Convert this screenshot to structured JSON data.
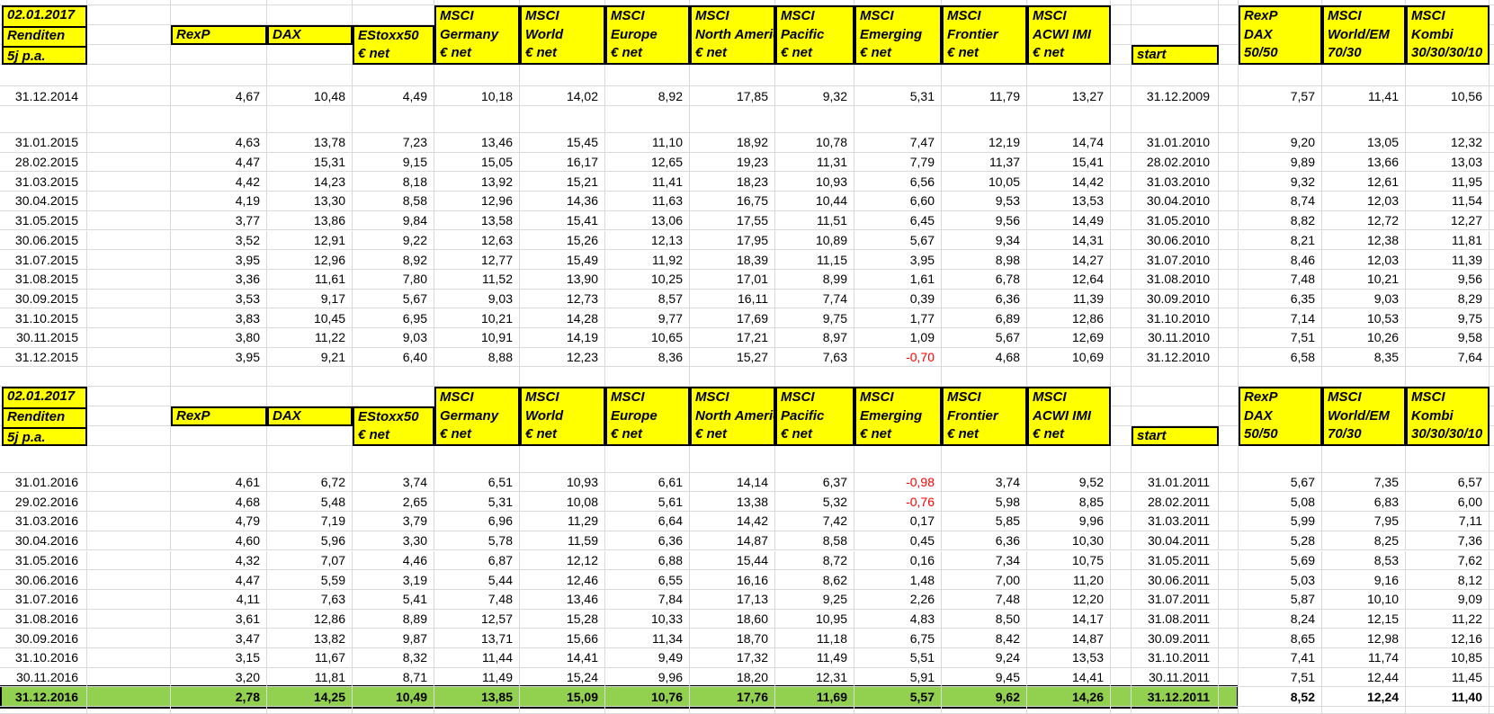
{
  "sheet": {
    "title_lines": [
      "02.01.2017",
      "Renditen",
      "5j p.a."
    ],
    "start_header": "start",
    "index_headers": [
      {
        "id": "rexp",
        "lines": [
          "RexP"
        ]
      },
      {
        "id": "dax",
        "lines": [
          "DAX"
        ]
      },
      {
        "id": "estoxx50",
        "lines": [
          "EStoxx50",
          "€ net"
        ]
      },
      {
        "id": "msci-germany",
        "lines": [
          "MSCI",
          "Germany",
          "€ net"
        ]
      },
      {
        "id": "msci-world",
        "lines": [
          "MSCI",
          "World",
          "€ net"
        ]
      },
      {
        "id": "msci-europe",
        "lines": [
          "MSCI",
          "Europe",
          "€ net"
        ]
      },
      {
        "id": "msci-north-america",
        "lines": [
          "MSCI",
          "North Americ",
          "€ net"
        ]
      },
      {
        "id": "msci-pacific",
        "lines": [
          "MSCI",
          "Pacific",
          "€ net"
        ]
      },
      {
        "id": "msci-emerging",
        "lines": [
          "MSCI",
          "Emerging",
          "€ net"
        ]
      },
      {
        "id": "msci-frontier",
        "lines": [
          "MSCI",
          "Frontier",
          "€ net"
        ]
      },
      {
        "id": "msci-acwi-imi",
        "lines": [
          "MSCI",
          "ACWI IMI",
          "€ net"
        ]
      }
    ],
    "combo_headers": [
      {
        "id": "rexp-dax-50-50",
        "lines": [
          "RexP",
          "DAX",
          "50/50"
        ]
      },
      {
        "id": "msci-world-em-70-30",
        "lines": [
          "MSCI",
          "World/EM",
          "70/30"
        ]
      },
      {
        "id": "msci-kombi-30-30-30-10",
        "lines": [
          "MSCI",
          "Kombi",
          "30/30/30/10"
        ]
      }
    ],
    "colors": {
      "header_bg": "#ffff00",
      "highlight_bg": "#92d050",
      "negative_text": "#ff0000",
      "gridline": "#d9d9d9",
      "border": "#000000"
    },
    "blocks": [
      {
        "rows": [
          {
            "date": "31.12.2014",
            "values": [
              "4,67",
              "10,48",
              "4,49",
              "10,18",
              "14,02",
              "8,92",
              "17,85",
              "9,32",
              "5,31",
              "11,79",
              "13,27"
            ],
            "start": "31.12.2009",
            "combos": [
              "7,57",
              "11,41",
              "10,56"
            ]
          },
          {
            "date": "31.01.2015",
            "values": [
              "4,63",
              "13,78",
              "7,23",
              "13,46",
              "15,45",
              "11,10",
              "18,92",
              "10,78",
              "7,47",
              "12,19",
              "14,74"
            ],
            "start": "31.01.2010",
            "combos": [
              "9,20",
              "13,05",
              "12,32"
            ]
          },
          {
            "date": "28.02.2015",
            "values": [
              "4,47",
              "15,31",
              "9,15",
              "15,05",
              "16,17",
              "12,65",
              "19,23",
              "11,31",
              "7,79",
              "11,37",
              "15,41"
            ],
            "start": "28.02.2010",
            "combos": [
              "9,89",
              "13,66",
              "13,03"
            ]
          },
          {
            "date": "31.03.2015",
            "values": [
              "4,42",
              "14,23",
              "8,18",
              "13,92",
              "15,21",
              "11,41",
              "18,23",
              "10,93",
              "6,56",
              "10,05",
              "14,42"
            ],
            "start": "31.03.2010",
            "combos": [
              "9,32",
              "12,61",
              "11,95"
            ]
          },
          {
            "date": "30.04.2015",
            "values": [
              "4,19",
              "13,30",
              "8,58",
              "12,96",
              "14,36",
              "11,63",
              "16,75",
              "10,44",
              "6,60",
              "9,53",
              "13,53"
            ],
            "start": "30.04.2010",
            "combos": [
              "8,74",
              "12,03",
              "11,54"
            ]
          },
          {
            "date": "31.05.2015",
            "values": [
              "3,77",
              "13,86",
              "9,84",
              "13,58",
              "15,41",
              "13,06",
              "17,55",
              "11,51",
              "6,45",
              "9,56",
              "14,49"
            ],
            "start": "31.05.2010",
            "combos": [
              "8,82",
              "12,72",
              "12,27"
            ]
          },
          {
            "date": "30.06.2015",
            "values": [
              "3,52",
              "12,91",
              "9,22",
              "12,63",
              "15,26",
              "12,13",
              "17,95",
              "10,89",
              "5,67",
              "9,34",
              "14,31"
            ],
            "start": "30.06.2010",
            "combos": [
              "8,21",
              "12,38",
              "11,81"
            ]
          },
          {
            "date": "31.07.2015",
            "values": [
              "3,95",
              "12,96",
              "8,92",
              "12,77",
              "15,49",
              "11,92",
              "18,39",
              "11,15",
              "3,95",
              "8,98",
              "14,27"
            ],
            "start": "31.07.2010",
            "combos": [
              "8,46",
              "12,03",
              "11,39"
            ]
          },
          {
            "date": "31.08.2015",
            "values": [
              "3,36",
              "11,61",
              "7,80",
              "11,52",
              "13,90",
              "10,25",
              "17,01",
              "8,99",
              "1,61",
              "6,78",
              "12,64"
            ],
            "start": "31.08.2010",
            "combos": [
              "7,48",
              "10,21",
              "9,56"
            ]
          },
          {
            "date": "30.09.2015",
            "values": [
              "3,53",
              "9,17",
              "5,67",
              "9,03",
              "12,73",
              "8,57",
              "16,11",
              "7,74",
              "0,39",
              "6,36",
              "11,39"
            ],
            "start": "30.09.2010",
            "combos": [
              "6,35",
              "9,03",
              "8,29"
            ]
          },
          {
            "date": "31.10.2015",
            "values": [
              "3,83",
              "10,45",
              "6,95",
              "10,21",
              "14,28",
              "9,77",
              "17,69",
              "9,75",
              "1,77",
              "6,89",
              "12,86"
            ],
            "start": "31.10.2010",
            "combos": [
              "7,14",
              "10,53",
              "9,75"
            ]
          },
          {
            "date": "30.11.2015",
            "values": [
              "3,80",
              "11,22",
              "9,03",
              "10,91",
              "14,19",
              "10,65",
              "17,21",
              "8,97",
              "1,09",
              "5,67",
              "12,69"
            ],
            "start": "30.11.2010",
            "combos": [
              "7,51",
              "10,26",
              "9,58"
            ]
          },
          {
            "date": "31.12.2015",
            "values": [
              "3,95",
              "9,21",
              "6,40",
              "8,88",
              "12,23",
              "8,36",
              "15,27",
              "7,63",
              "-0,70",
              "4,68",
              "10,69"
            ],
            "start": "31.12.2010",
            "combos": [
              "6,58",
              "8,35",
              "7,64"
            ]
          }
        ]
      },
      {
        "rows": [
          {
            "date": "31.01.2016",
            "values": [
              "4,61",
              "6,72",
              "3,74",
              "6,51",
              "10,93",
              "6,61",
              "14,14",
              "6,37",
              "-0,98",
              "3,74",
              "9,52"
            ],
            "start": "31.01.2011",
            "combos": [
              "5,67",
              "7,35",
              "6,57"
            ]
          },
          {
            "date": "29.02.2016",
            "values": [
              "4,68",
              "5,48",
              "2,65",
              "5,31",
              "10,08",
              "5,61",
              "13,38",
              "5,32",
              "-0,76",
              "5,98",
              "8,85"
            ],
            "start": "28.02.2011",
            "combos": [
              "5,08",
              "6,83",
              "6,00"
            ]
          },
          {
            "date": "31.03.2016",
            "values": [
              "4,79",
              "7,19",
              "3,79",
              "6,96",
              "11,29",
              "6,64",
              "14,42",
              "7,42",
              "0,17",
              "5,85",
              "9,96"
            ],
            "start": "31.03.2011",
            "combos": [
              "5,99",
              "7,95",
              "7,11"
            ]
          },
          {
            "date": "30.04.2016",
            "values": [
              "4,60",
              "5,96",
              "3,30",
              "5,78",
              "11,59",
              "6,36",
              "14,87",
              "8,58",
              "0,45",
              "6,36",
              "10,30"
            ],
            "start": "30.04.2011",
            "combos": [
              "5,28",
              "8,25",
              "7,36"
            ]
          },
          {
            "date": "31.05.2016",
            "values": [
              "4,32",
              "7,07",
              "4,46",
              "6,87",
              "12,12",
              "6,88",
              "15,44",
              "8,72",
              "0,16",
              "7,34",
              "10,75"
            ],
            "start": "31.05.2011",
            "combos": [
              "5,69",
              "8,53",
              "7,62"
            ]
          },
          {
            "date": "30.06.2016",
            "values": [
              "4,47",
              "5,59",
              "3,19",
              "5,44",
              "12,46",
              "6,55",
              "16,16",
              "8,62",
              "1,48",
              "7,00",
              "11,20"
            ],
            "start": "30.06.2011",
            "combos": [
              "5,03",
              "9,16",
              "8,12"
            ]
          },
          {
            "date": "31.07.2016",
            "values": [
              "4,11",
              "7,63",
              "5,41",
              "7,48",
              "13,46",
              "7,84",
              "17,13",
              "9,25",
              "2,26",
              "7,48",
              "12,20"
            ],
            "start": "31.07.2011",
            "combos": [
              "5,87",
              "10,10",
              "9,09"
            ]
          },
          {
            "date": "31.08.2016",
            "values": [
              "3,61",
              "12,86",
              "8,89",
              "12,57",
              "15,28",
              "10,33",
              "18,60",
              "10,95",
              "4,83",
              "8,50",
              "14,17"
            ],
            "start": "31.08.2011",
            "combos": [
              "8,24",
              "12,15",
              "11,22"
            ]
          },
          {
            "date": "30.09.2016",
            "values": [
              "3,47",
              "13,82",
              "9,87",
              "13,71",
              "15,66",
              "11,34",
              "18,70",
              "11,18",
              "6,75",
              "8,42",
              "14,87"
            ],
            "start": "30.09.2011",
            "combos": [
              "8,65",
              "12,98",
              "12,16"
            ]
          },
          {
            "date": "31.10.2016",
            "values": [
              "3,15",
              "11,67",
              "8,32",
              "11,44",
              "14,41",
              "9,49",
              "17,32",
              "11,49",
              "5,51",
              "9,24",
              "13,53"
            ],
            "start": "31.10.2011",
            "combos": [
              "7,41",
              "11,74",
              "10,85"
            ]
          },
          {
            "date": "30.11.2016",
            "values": [
              "3,20",
              "11,81",
              "8,71",
              "11,49",
              "15,24",
              "9,96",
              "18,20",
              "12,31",
              "5,91",
              "9,45",
              "14,41"
            ],
            "start": "30.11.2011",
            "combos": [
              "7,51",
              "12,44",
              "11,45"
            ]
          },
          {
            "date": "31.12.2016",
            "highlight": true,
            "values": [
              "2,78",
              "14,25",
              "10,49",
              "13,85",
              "15,09",
              "10,76",
              "17,76",
              "11,69",
              "5,57",
              "9,62",
              "14,26"
            ],
            "start": "31.12.2011",
            "combos": [
              "8,52",
              "12,24",
              "11,40"
            ]
          }
        ]
      }
    ]
  }
}
